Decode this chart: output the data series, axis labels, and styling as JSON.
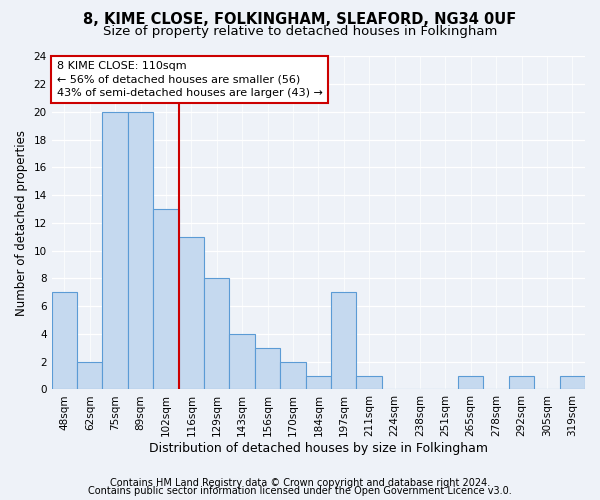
{
  "title1": "8, KIME CLOSE, FOLKINGHAM, SLEAFORD, NG34 0UF",
  "title2": "Size of property relative to detached houses in Folkingham",
  "xlabel": "Distribution of detached houses by size in Folkingham",
  "ylabel": "Number of detached properties",
  "categories": [
    "48sqm",
    "62sqm",
    "75sqm",
    "89sqm",
    "102sqm",
    "116sqm",
    "129sqm",
    "143sqm",
    "156sqm",
    "170sqm",
    "184sqm",
    "197sqm",
    "211sqm",
    "224sqm",
    "238sqm",
    "251sqm",
    "265sqm",
    "278sqm",
    "292sqm",
    "305sqm",
    "319sqm"
  ],
  "values": [
    7,
    2,
    20,
    20,
    13,
    11,
    8,
    4,
    3,
    2,
    1,
    7,
    1,
    0,
    0,
    0,
    1,
    0,
    1,
    0,
    1
  ],
  "bar_color": "#c5d9ef",
  "bar_edge_color": "#5b9bd5",
  "vline_x_index": 4.5,
  "vline_color": "#cc0000",
  "annotation_line1": "8 KIME CLOSE: 110sqm",
  "annotation_line2": "← 56% of detached houses are smaller (56)",
  "annotation_line3": "43% of semi-detached houses are larger (43) →",
  "annotation_box_color": "#cc0000",
  "ylim": [
    0,
    24
  ],
  "yticks": [
    0,
    2,
    4,
    6,
    8,
    10,
    12,
    14,
    16,
    18,
    20,
    22,
    24
  ],
  "footer1": "Contains HM Land Registry data © Crown copyright and database right 2024.",
  "footer2": "Contains public sector information licensed under the Open Government Licence v3.0.",
  "title1_fontsize": 10.5,
  "title2_fontsize": 9.5,
  "xlabel_fontsize": 9,
  "ylabel_fontsize": 8.5,
  "tick_fontsize": 7.5,
  "annotation_fontsize": 8,
  "footer_fontsize": 7,
  "background_color": "#eef2f8",
  "plot_bg_color": "#eef2f8"
}
